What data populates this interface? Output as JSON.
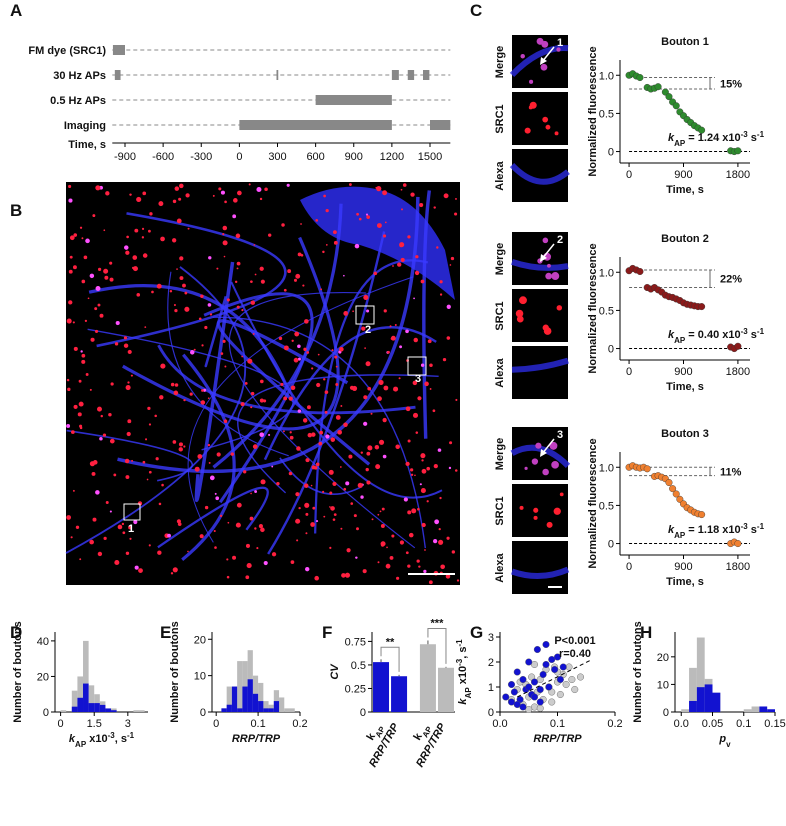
{
  "panel_labels": [
    "A",
    "B",
    "C",
    "D",
    "E",
    "F",
    "G",
    "H"
  ],
  "timeline": {
    "xlim": [
      -1000,
      1660
    ],
    "xticks": [
      -900,
      -600,
      -300,
      0,
      300,
      600,
      900,
      1200,
      1500
    ],
    "xlabel": "Time, s",
    "color": "#888888",
    "rows": [
      {
        "label": "FM dye (SRC1)",
        "blocks": [
          [
            -995,
            -900
          ]
        ]
      },
      {
        "label": "30 Hz APs",
        "blocks": [
          [
            -980,
            -935
          ],
          [
            292,
            306
          ],
          [
            1200,
            1255
          ],
          [
            1325,
            1375
          ],
          [
            1445,
            1495
          ]
        ]
      },
      {
        "label": "0.5 Hz APs",
        "blocks": [
          [
            600,
            1200
          ]
        ]
      },
      {
        "label": "Imaging",
        "blocks": [
          [
            0,
            1200
          ],
          [
            1500,
            1660
          ]
        ]
      }
    ]
  },
  "image": {
    "roi_labels": [
      "1",
      "2",
      "3"
    ]
  },
  "boutons": [
    {
      "title": "Bouton 1",
      "image_labels": [
        "Merge",
        "SRC1",
        "Alexa"
      ],
      "arrow_label": "1",
      "color": "#2e8b2e",
      "x": [
        0,
        60,
        120,
        180,
        300,
        360,
        420,
        480,
        600,
        660,
        720,
        780,
        840,
        900,
        960,
        1020,
        1080,
        1140,
        1200,
        1680,
        1740,
        1800
      ],
      "values": [
        1.0,
        1.02,
        0.99,
        0.97,
        0.84,
        0.82,
        0.83,
        0.85,
        0.78,
        0.72,
        0.65,
        0.6,
        0.52,
        0.47,
        0.42,
        0.38,
        0.34,
        0.31,
        0.28,
        0.01,
        0.0,
        0.01
      ],
      "xlim": [
        -150,
        2000
      ],
      "ylim": [
        -0.15,
        1.2
      ],
      "xticks": [
        0,
        900,
        1800
      ],
      "yticks": [
        0,
        0.5,
        {
          "value": 1,
          "label": "1.0"
        }
      ],
      "xlabel": "Time, s",
      "ylabel": "Normalized fluorescence",
      "step_levels": [
        0.97,
        0.82
      ],
      "step_label": "15%",
      "rate_label": [
        {
          "text": "k",
          "style": "italic"
        },
        {
          "text": "AP",
          "style": "sub"
        },
        {
          "text": " = 1.24 x10"
        },
        {
          "text": "-3",
          "style": "sup"
        },
        {
          "text": " s"
        },
        {
          "text": "-1",
          "style": "sup"
        }
      ]
    },
    {
      "title": "Bouton 2",
      "image_labels": [
        "Merge",
        "SRC1",
        "Alexa"
      ],
      "arrow_label": "2",
      "color": "#8b1a1a",
      "x": [
        0,
        60,
        120,
        180,
        300,
        360,
        420,
        480,
        540,
        600,
        660,
        720,
        780,
        840,
        900,
        960,
        1020,
        1080,
        1140,
        1200,
        1680,
        1740,
        1800
      ],
      "values": [
        1.02,
        1.05,
        1.03,
        1.01,
        0.8,
        0.78,
        0.8,
        0.77,
        0.74,
        0.7,
        0.68,
        0.67,
        0.65,
        0.63,
        0.6,
        0.58,
        0.57,
        0.56,
        0.55,
        0.55,
        0.02,
        0.0,
        0.03
      ],
      "xlim": [
        -150,
        2000
      ],
      "ylim": [
        -0.15,
        1.2
      ],
      "xticks": [
        0,
        900,
        1800
      ],
      "yticks": [
        0,
        0.5,
        {
          "value": 1,
          "label": "1.0"
        }
      ],
      "xlabel": "Time, s",
      "ylabel": "Normalized fluorescence",
      "step_levels": [
        1.03,
        0.8
      ],
      "step_label": "22%",
      "rate_label": [
        {
          "text": "k",
          "style": "italic"
        },
        {
          "text": "AP",
          "style": "sub"
        },
        {
          "text": " = 0.40 x10"
        },
        {
          "text": "-3",
          "style": "sup"
        },
        {
          "text": " s"
        },
        {
          "text": "-1",
          "style": "sup"
        }
      ]
    },
    {
      "title": "Bouton 3",
      "image_labels": [
        "Merge",
        "SRC1",
        "Alexa"
      ],
      "arrow_label": "3",
      "color": "#f08030",
      "x": [
        0,
        60,
        120,
        180,
        240,
        300,
        420,
        480,
        540,
        600,
        660,
        720,
        780,
        840,
        900,
        960,
        1020,
        1080,
        1140,
        1200,
        1680,
        1740,
        1800
      ],
      "values": [
        1.0,
        1.02,
        1.0,
        0.99,
        1.0,
        0.98,
        0.88,
        0.89,
        0.87,
        0.85,
        0.8,
        0.72,
        0.65,
        0.58,
        0.52,
        0.47,
        0.44,
        0.41,
        0.39,
        0.38,
        0.0,
        0.02,
        0.0
      ],
      "xlim": [
        -150,
        2000
      ],
      "ylim": [
        -0.15,
        1.2
      ],
      "xticks": [
        0,
        900,
        1800
      ],
      "yticks": [
        0,
        0.5,
        {
          "value": 1,
          "label": "1.0"
        }
      ],
      "xlabel": "Time, s",
      "ylabel": "Normalized fluorescence",
      "step_levels": [
        1.0,
        0.89
      ],
      "step_label": "11%",
      "rate_label": [
        {
          "text": "k",
          "style": "italic"
        },
        {
          "text": "AP",
          "style": "sub"
        },
        {
          "text": " = 1.18 x10"
        },
        {
          "text": "-3",
          "style": "sup"
        },
        {
          "text": " s"
        },
        {
          "text": "-1",
          "style": "sup"
        }
      ]
    }
  ],
  "charts": [
    {
      "type": "histogram",
      "bins": [
        0,
        0.25,
        0.5,
        0.75,
        1,
        1.25,
        1.5,
        1.75,
        2,
        2.25,
        2.5,
        2.75,
        3,
        3.25,
        3.5,
        3.75
      ],
      "series": [
        {
          "color": "#bbbbbb",
          "values": [
            1,
            0,
            12,
            20,
            40,
            15,
            10,
            6,
            2,
            2,
            0,
            0,
            0,
            1,
            1
          ]
        },
        {
          "color": "#1212d0",
          "values": [
            0,
            0,
            3,
            8,
            16,
            5,
            5,
            4,
            2,
            1,
            0,
            0,
            0,
            0,
            0
          ]
        }
      ],
      "xlim": [
        -0.25,
        3.9
      ],
      "ylim": [
        0,
        45
      ],
      "xticks": [
        0,
        1.5,
        3
      ],
      "yticks": [
        0,
        20,
        40
      ],
      "ylabel": "Number of boutons",
      "xlabel": [
        {
          "text": "k",
          "style": "italic"
        },
        {
          "text": "AP",
          "style": "sub"
        },
        {
          "text": " x10"
        },
        {
          "text": "-3",
          "style": "sup"
        },
        {
          "text": ", s"
        },
        {
          "text": "-1",
          "style": "sup"
        }
      ]
    },
    {
      "type": "histogram",
      "bins": [
        0,
        0.0125,
        0.025,
        0.0375,
        0.05,
        0.0625,
        0.075,
        0.0875,
        0.1,
        0.1125,
        0.125,
        0.1375,
        0.15,
        0.1625,
        0.175,
        0.1875,
        0.2
      ],
      "series": [
        {
          "color": "#bbbbbb",
          "values": [
            0,
            1,
            7,
            7,
            14,
            14,
            17,
            10,
            8,
            3,
            2,
            6,
            4,
            1,
            1,
            0
          ]
        },
        {
          "color": "#1212d0",
          "values": [
            0,
            1,
            2,
            7,
            1,
            7,
            9,
            5,
            3,
            1,
            1,
            3,
            0,
            0,
            0,
            0
          ]
        }
      ],
      "xlim": [
        -0.01,
        0.2
      ],
      "ylim": [
        0,
        22
      ],
      "xticks": [
        0,
        0.1,
        0.2
      ],
      "yticks": [
        0,
        10,
        20
      ],
      "ylabel": "Number of boutons",
      "xlabel": [
        {
          "text": "RRP/TRP",
          "style": "italic"
        }
      ]
    },
    {
      "type": "bar",
      "categories": [
        [
          {
            "text": "k"
          },
          {
            "text": "AP",
            "style": "sub"
          }
        ],
        [
          {
            "text": "RRP/TRP",
            "style": "italic"
          }
        ],
        [
          {
            "text": "k"
          },
          {
            "text": "AP",
            "style": "sub"
          }
        ],
        [
          {
            "text": "RRP/TRP",
            "style": "italic"
          }
        ]
      ],
      "values": [
        0.53,
        0.38,
        0.72,
        0.47
      ],
      "errors": [
        0.03,
        0.015,
        0.04,
        0.01
      ],
      "colors": [
        "#1212d0",
        "#1212d0",
        "#bbbbbb",
        "#bbbbbb"
      ],
      "significance": [
        "**",
        "***"
      ],
      "ylim": [
        0,
        0.85
      ],
      "yticks": [
        0,
        0.25,
        0.5,
        0.75
      ],
      "ylabel": [
        {
          "text": "CV",
          "style": "italic"
        }
      ]
    },
    {
      "type": "scatter",
      "xlim": [
        0,
        0.2
      ],
      "ylim": [
        0,
        3.2
      ],
      "xticks": [
        {
          "value": 0,
          "label": "0.0"
        },
        0.1,
        0.2
      ],
      "yticks": [
        0,
        1,
        2,
        3
      ],
      "xlabel": [
        {
          "text": "RRP/TRP",
          "style": "italic"
        }
      ],
      "ylabel": [
        {
          "text": "k",
          "style": "italic"
        },
        {
          "text": "AP",
          "style": "sub"
        },
        {
          "text": " x10"
        },
        {
          "text": "-3",
          "style": "sup"
        },
        {
          "text": ", s"
        },
        {
          "text": "-1",
          "style": "sup"
        }
      ],
      "annotations": [
        "P<0.001",
        "r=0.40"
      ],
      "fit": {
        "x": [
          0.03,
          0.16
        ],
        "values": [
          0.6,
          2.1
        ]
      },
      "series": [
        {
          "color": "#cccccc",
          "x": [
            0.02,
            0.03,
            0.04,
            0.045,
            0.05,
            0.055,
            0.06,
            0.065,
            0.07,
            0.075,
            0.08,
            0.085,
            0.09,
            0.095,
            0.1,
            0.105,
            0.11,
            0.115,
            0.12,
            0.125,
            0.13,
            0.14,
            0.06,
            0.035,
            0.05,
            0.07,
            0.09,
            0.1
          ],
          "values": [
            0.5,
            0.9,
            0.3,
            1.1,
            0.6,
            1.4,
            0.2,
            0.8,
            1.3,
            0.5,
            1.7,
            1.0,
            0.4,
            1.8,
            1.2,
            0.7,
            1.5,
            1.1,
            1.8,
            1.3,
            0.9,
            1.4,
            1.9,
            1.2,
            0.1,
            0.15,
            0.8,
            1.6
          ]
        },
        {
          "color": "#1212d0",
          "x": [
            0.01,
            0.02,
            0.025,
            0.03,
            0.035,
            0.04,
            0.045,
            0.05,
            0.055,
            0.06,
            0.065,
            0.07,
            0.075,
            0.08,
            0.085,
            0.09,
            0.095,
            0.1,
            0.105,
            0.11,
            0.03,
            0.05,
            0.07,
            0.08,
            0.04,
            0.02,
            0.06
          ],
          "values": [
            0.6,
            1.1,
            0.8,
            1.6,
            0.5,
            1.3,
            0.9,
            2.0,
            0.7,
            1.2,
            2.5,
            0.4,
            1.5,
            2.7,
            1.0,
            2.1,
            1.7,
            2.2,
            1.3,
            1.8,
            0.3,
            1.0,
            0.9,
            1.9,
            0.2,
            0.4,
            0.6
          ]
        }
      ]
    },
    {
      "type": "histogram",
      "bins": [
        0,
        0.0125,
        0.025,
        0.0375,
        0.05,
        0.0625,
        0.075,
        0.0875,
        0.1,
        0.1125,
        0.125,
        0.1375,
        0.15
      ],
      "series": [
        {
          "color": "#bbbbbb",
          "values": [
            1,
            16,
            27,
            12,
            7,
            0,
            0,
            0,
            1,
            2,
            0,
            0
          ]
        },
        {
          "color": "#1212d0",
          "values": [
            0,
            4,
            9,
            10,
            7,
            0,
            0,
            0,
            0,
            0,
            2,
            1
          ]
        }
      ],
      "xlim": [
        -0.01,
        0.15
      ],
      "ylim": [
        0,
        29
      ],
      "xticks": [
        {
          "value": 0,
          "label": "0.0"
        },
        0.05,
        0.1,
        0.15
      ],
      "yticks": [
        0,
        10,
        20
      ],
      "ylabel": "Number of boutons",
      "xlabel": [
        {
          "text": "p",
          "style": "italic"
        },
        {
          "text": "v",
          "style": "sub"
        }
      ]
    }
  ]
}
